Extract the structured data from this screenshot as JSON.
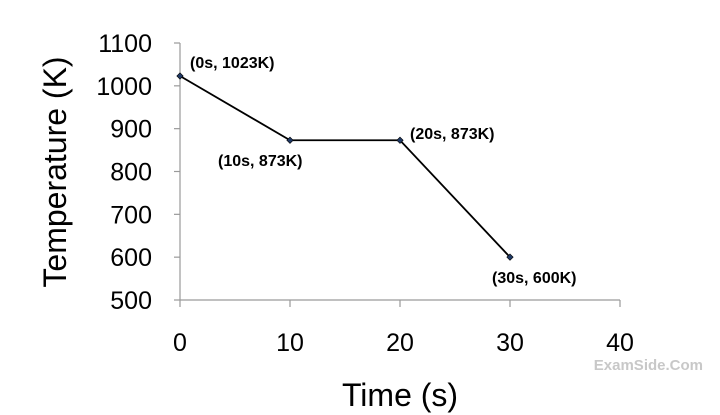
{
  "chart_data": {
    "type": "line",
    "x": [
      0,
      10,
      20,
      30
    ],
    "series": [
      {
        "values": [
          1023,
          873,
          873,
          600
        ]
      }
    ],
    "point_labels": [
      "(0s, 1023K)",
      "(10s, 873K)",
      "(20s, 873K)",
      "(30s, 600K)"
    ],
    "x_ticks": [
      0,
      10,
      20,
      30,
      40
    ],
    "y_ticks": [
      500,
      600,
      700,
      800,
      900,
      1000,
      1100
    ],
    "xlim": [
      0,
      40
    ],
    "ylim": [
      500,
      1100
    ],
    "xlabel": "Time (s)",
    "ylabel": "Temperature (K)",
    "grid": false,
    "line_color": "#000000",
    "marker_color": "#1f3864"
  },
  "watermark": "ExamSide.Com"
}
